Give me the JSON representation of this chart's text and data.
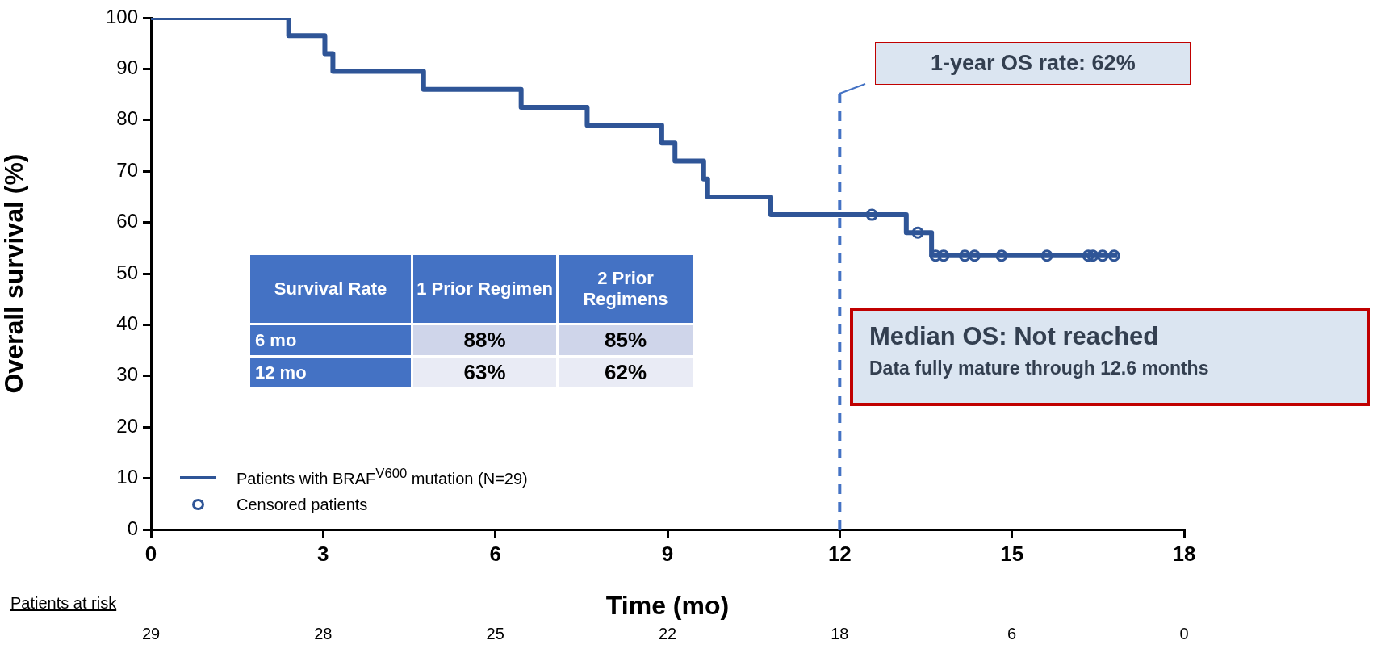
{
  "chart_data": {
    "type": "step",
    "xlabel": "Time (mo)",
    "ylabel": "Overall survival (%)",
    "xlim": [
      0,
      18
    ],
    "xticks": [
      0,
      3,
      6,
      9,
      12,
      15,
      18
    ],
    "ylim": [
      0,
      100
    ],
    "yticks": [
      0,
      10,
      20,
      30,
      40,
      50,
      60,
      70,
      80,
      90,
      100
    ],
    "grid": false,
    "legend": "bottom left",
    "series": [
      {
        "name": "Patients with BRAF$^{V600}$ mutation (N=29)",
        "color": "#2f5597",
        "marker": "none",
        "line_style": "solid",
        "x": [
          0,
          2.4,
          3.03,
          3.17,
          4.75,
          6.45,
          7.6,
          8.9,
          9.13,
          9.63,
          9.7,
          10.8,
          13.16,
          13.6,
          16.84
        ],
        "values": [
          100,
          96.5,
          93,
          89.5,
          86,
          82.5,
          79,
          75.5,
          72,
          68.5,
          65,
          61.5,
          58,
          53.5,
          53.5
        ]
      },
      {
        "name": "Censored patients",
        "type": "scatter",
        "color": "#2f5597",
        "marker": "circle",
        "x": [
          12.56,
          13.36,
          13.67,
          13.81,
          14.18,
          14.35,
          14.82,
          15.61,
          16.33,
          16.41,
          16.58,
          16.78
        ],
        "values": [
          61.5,
          58,
          53.5,
          53.5,
          53.5,
          53.5,
          53.5,
          53.5,
          53.5,
          53.5,
          53.5,
          53.5
        ]
      }
    ],
    "ref_lines": [
      {
        "axis": "x",
        "value": 12,
        "color": "#4472c4",
        "line_style": "dashed"
      }
    ],
    "annotations": [
      "1-year OS rate: 62%",
      "Median OS: Not reached",
      "Data fully mature through 12.6 months",
      "Survival Rate",
      "1 Prior Regimen",
      "2 Prior Regimens",
      "6 mo",
      "88%",
      "85%",
      "12 mo",
      "63%",
      "62%",
      "Patients at risk",
      "29",
      "28",
      "25",
      "22",
      "18",
      "6",
      "0"
    ]
  }
}
